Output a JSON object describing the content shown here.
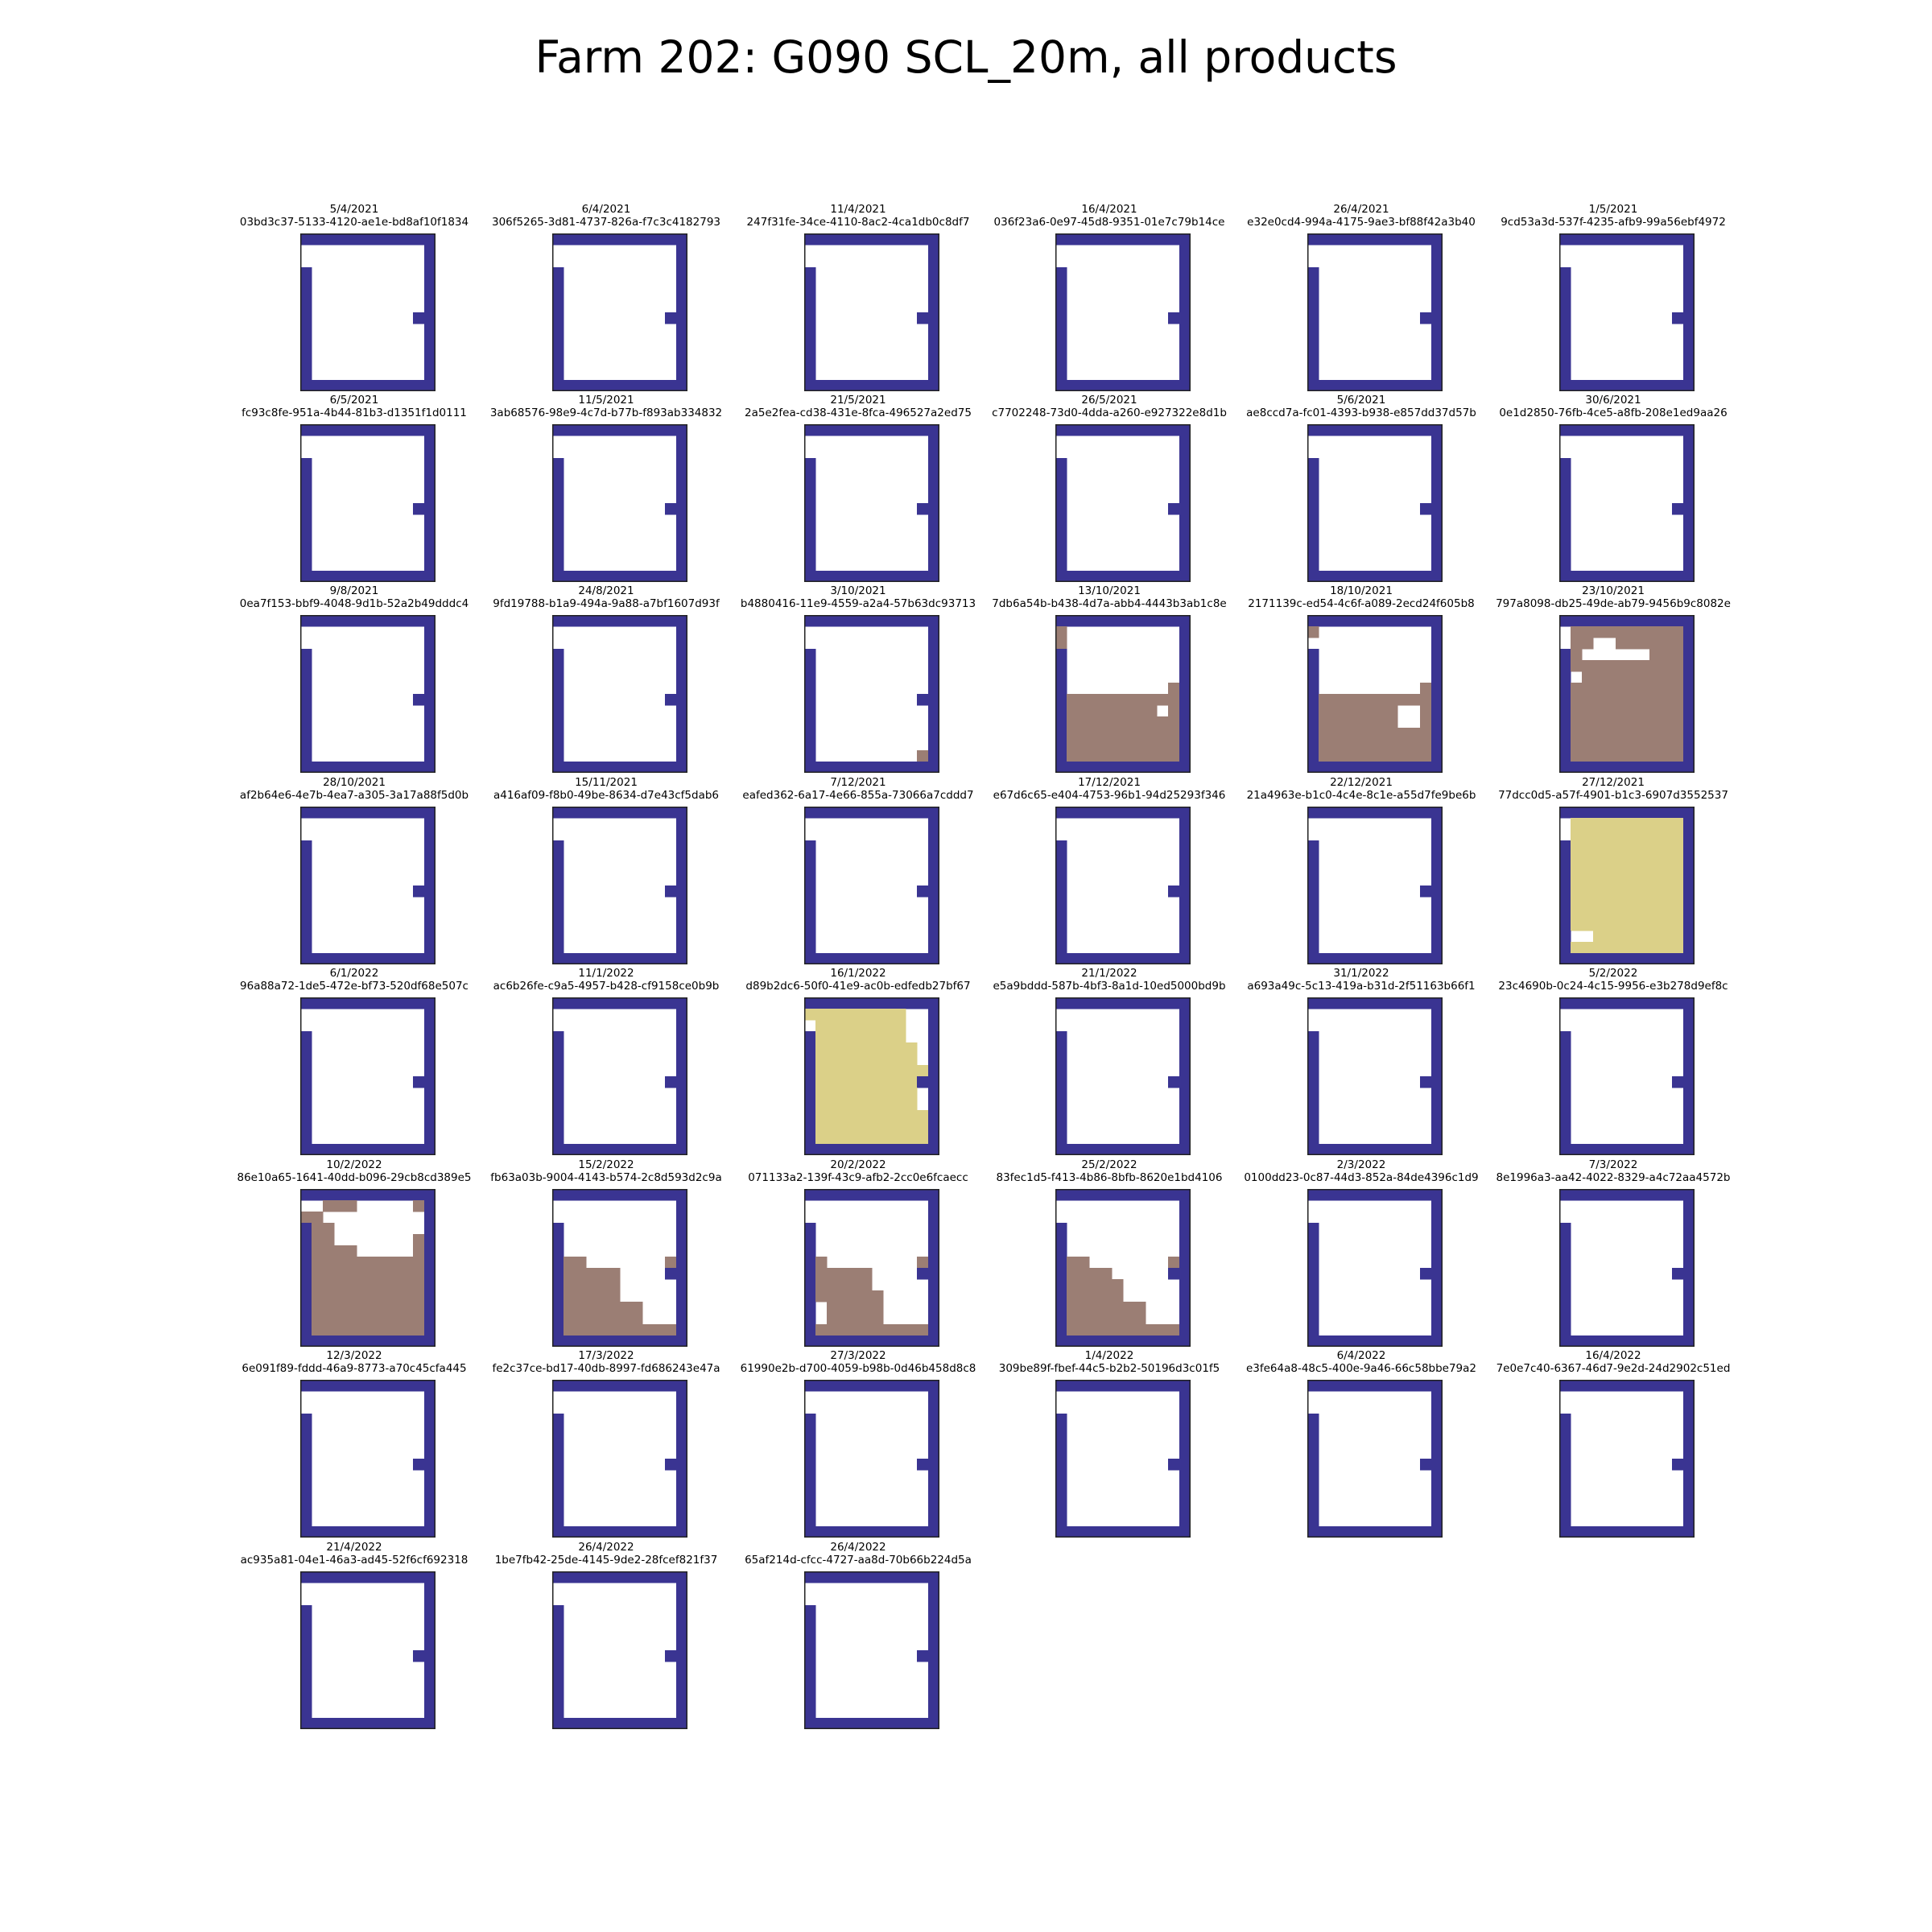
{
  "title": "Farm 202: G090 SCL_20m, all products",
  "chart_data": {
    "type": "heatmap",
    "title": "Farm 202: G090 SCL_20m, all products",
    "grid_rows": 14,
    "grid_cols": 12,
    "colors": {
      "nodata": "#ffffff",
      "field_border": "#3a3492",
      "class_brown": "#9b7e74",
      "class_yellow": "#dbd088",
      "outline": "#222222"
    },
    "panels": [
      {
        "date": "5/4/2021",
        "id": "03bd3c37-5133-4120-ae1e-bd8af10f1834"
      },
      {
        "date": "6/4/2021",
        "id": "306f5265-3d81-4737-826a-f7c3c4182793"
      },
      {
        "date": "11/4/2021",
        "id": "247f31fe-34ce-4110-8ac2-4ca1db0c8df7"
      },
      {
        "date": "16/4/2021",
        "id": "036f23a6-0e97-45d8-9351-01e7c79b14ce"
      },
      {
        "date": "26/4/2021",
        "id": "e32e0cd4-994a-4175-9ae3-bf88f42a3b40"
      },
      {
        "date": "1/5/2021",
        "id": "9cd53a3d-537f-4235-afb9-99a56ebf4972"
      },
      {
        "date": "6/5/2021",
        "id": "fc93c8fe-951a-4b44-81b3-d1351f1d0111"
      },
      {
        "date": "11/5/2021",
        "id": "3ab68576-98e9-4c7d-b77b-f893ab334832"
      },
      {
        "date": "21/5/2021",
        "id": "2a5e2fea-cd38-431e-8fca-496527a2ed75"
      },
      {
        "date": "26/5/2021",
        "id": "c7702248-73d0-4dda-a260-e927322e8d1b"
      },
      {
        "date": "5/6/2021",
        "id": "ae8ccd7a-fc01-4393-b938-e857dd37d57b"
      },
      {
        "date": "30/6/2021",
        "id": "0e1d2850-76fb-4ce5-a8fb-208e1ed9aa26"
      },
      {
        "date": "9/8/2021",
        "id": "0ea7f153-bbf9-4048-9d1b-52a2b49dddc4"
      },
      {
        "date": "24/8/2021",
        "id": "9fd19788-b1a9-494a-9a88-a7bf1607d93f"
      },
      {
        "date": "3/10/2021",
        "id": "b4880416-11e9-4559-a2a4-57b63dc93713",
        "cells": [
          [
            "brown",
            12,
            10
          ]
        ]
      },
      {
        "date": "13/10/2021",
        "id": "7db6a54b-b438-4d7a-abb4-4443b3ab1c8e",
        "cells": [
          [
            "brown",
            1,
            0
          ],
          [
            "brown",
            2,
            0
          ],
          [
            "brown",
            6,
            10
          ],
          [
            "brown",
            7,
            1,
            10
          ],
          [
            "brown",
            8,
            1,
            8
          ],
          [
            "brown",
            8,
            10
          ],
          [
            "brown",
            9,
            1,
            10
          ],
          [
            "brown",
            10,
            1,
            10
          ],
          [
            "brown",
            11,
            1,
            10
          ],
          [
            "brown",
            12,
            1,
            10
          ]
        ]
      },
      {
        "date": "18/10/2021",
        "id": "2171139c-ed54-4c6f-a089-2ecd24f605b8",
        "cells": [
          [
            "brown",
            1,
            0
          ],
          [
            "brown",
            6,
            10
          ],
          [
            "brown",
            7,
            1,
            10
          ],
          [
            "brown",
            8,
            1,
            7
          ],
          [
            "brown",
            8,
            10
          ],
          [
            "brown",
            9,
            1,
            7
          ],
          [
            "brown",
            9,
            10
          ],
          [
            "brown",
            10,
            1,
            10
          ],
          [
            "brown",
            11,
            1,
            10
          ],
          [
            "brown",
            12,
            1,
            10
          ]
        ]
      },
      {
        "date": "23/10/2021",
        "id": "797a8098-db25-49de-ab79-9456b9c8082e",
        "cells": [
          [
            "brown",
            1,
            1,
            10
          ],
          [
            "brown",
            2,
            1,
            2
          ],
          [
            "brown",
            2,
            5,
            10
          ],
          [
            "brown",
            3,
            1
          ],
          [
            "brown",
            3,
            8,
            10
          ],
          [
            "brown",
            4,
            1,
            10
          ],
          [
            "brown",
            5,
            2,
            10
          ],
          [
            "brown",
            6,
            1,
            10
          ],
          [
            "brown",
            7,
            1,
            10
          ],
          [
            "brown",
            8,
            1,
            10
          ],
          [
            "brown",
            9,
            1,
            10
          ],
          [
            "brown",
            10,
            1,
            10
          ],
          [
            "brown",
            11,
            1,
            10
          ],
          [
            "brown",
            12,
            1,
            10
          ]
        ]
      },
      {
        "date": "28/10/2021",
        "id": "af2b64e6-4e7b-4ea7-a305-3a17a88f5d0b"
      },
      {
        "date": "15/11/2021",
        "id": "a416af09-f8b0-49be-8634-d7e43cf5dab6"
      },
      {
        "date": "7/12/2021",
        "id": "eafed362-6a17-4e66-855a-73066a7cddd7"
      },
      {
        "date": "17/12/2021",
        "id": "e67d6c65-e404-4753-96b1-94d25293f346"
      },
      {
        "date": "22/12/2021",
        "id": "21a4963e-b1c0-4c4e-8c1e-a55d7fe9be6b"
      },
      {
        "date": "27/12/2021",
        "id": "77dcc0d5-a57f-4901-b1c3-6907d3552537",
        "cells": [
          [
            "yellow",
            1,
            1,
            10
          ],
          [
            "yellow",
            2,
            1,
            10
          ],
          [
            "yellow",
            3,
            1,
            10
          ],
          [
            "yellow",
            4,
            1,
            10
          ],
          [
            "yellow",
            5,
            1,
            10
          ],
          [
            "yellow",
            6,
            1,
            10
          ],
          [
            "yellow",
            7,
            1,
            10
          ],
          [
            "yellow",
            8,
            1,
            10
          ],
          [
            "yellow",
            9,
            1,
            10
          ],
          [
            "yellow",
            10,
            1,
            10
          ],
          [
            "yellow",
            11,
            3,
            10
          ],
          [
            "yellow",
            12,
            1,
            10
          ]
        ]
      },
      {
        "date": "6/1/2022",
        "id": "96a88a72-1de5-472e-bf73-520df68e507c"
      },
      {
        "date": "11/1/2022",
        "id": "ac6b26fe-c9a5-4957-b428-cf9158ce0b9b"
      },
      {
        "date": "16/1/2022",
        "id": "d89b2dc6-50f0-41e9-ac0b-edfedb27bf67",
        "cells": [
          [
            "yellow",
            1,
            0,
            8
          ],
          [
            "yellow",
            2,
            1,
            8
          ],
          [
            "yellow",
            3,
            1,
            8
          ],
          [
            "yellow",
            4,
            1,
            9
          ],
          [
            "yellow",
            5,
            1,
            9
          ],
          [
            "yellow",
            6,
            1,
            10
          ],
          [
            "yellow",
            7,
            1,
            9
          ],
          [
            "yellow",
            8,
            1,
            9
          ],
          [
            "yellow",
            9,
            1,
            9
          ],
          [
            "yellow",
            10,
            1,
            10
          ],
          [
            "yellow",
            11,
            1,
            10
          ],
          [
            "yellow",
            12,
            1,
            10
          ]
        ]
      },
      {
        "date": "21/1/2022",
        "id": "e5a9bddd-587b-4bf3-8a1d-10ed5000bd9b"
      },
      {
        "date": "31/1/2022",
        "id": "a693a49c-5c13-419a-b31d-2f51163b66f1"
      },
      {
        "date": "5/2/2022",
        "id": "23c4690b-0c24-4c15-9956-e3b278d9ef8c"
      },
      {
        "date": "10/2/2022",
        "id": "86e10a65-1641-40dd-b096-29cb8cd389e5",
        "cells": [
          [
            "brown",
            1,
            2,
            4
          ],
          [
            "brown",
            1,
            10
          ],
          [
            "brown",
            2,
            0,
            1
          ],
          [
            "brown",
            3,
            1,
            2
          ],
          [
            "brown",
            4,
            1,
            2
          ],
          [
            "brown",
            4,
            10
          ],
          [
            "brown",
            5,
            1,
            4
          ],
          [
            "brown",
            5,
            10
          ],
          [
            "brown",
            6,
            1,
            10
          ],
          [
            "brown",
            7,
            1,
            10
          ],
          [
            "brown",
            8,
            1,
            10
          ],
          [
            "brown",
            9,
            1,
            10
          ],
          [
            "brown",
            10,
            1,
            10
          ],
          [
            "brown",
            11,
            1,
            10
          ],
          [
            "brown",
            12,
            1,
            10
          ]
        ]
      },
      {
        "date": "15/2/2022",
        "id": "fb63a03b-9004-4143-b574-2c8d593d2c9a",
        "cells": [
          [
            "brown",
            6,
            1,
            2
          ],
          [
            "brown",
            6,
            10
          ],
          [
            "brown",
            7,
            1,
            5
          ],
          [
            "brown",
            8,
            1,
            5
          ],
          [
            "brown",
            9,
            1,
            5
          ],
          [
            "brown",
            10,
            1,
            5
          ],
          [
            "brown",
            10,
            6,
            7
          ],
          [
            "brown",
            11,
            1,
            7
          ],
          [
            "brown",
            12,
            1,
            10
          ]
        ]
      },
      {
        "date": "20/2/2022",
        "id": "071133a2-139f-43c9-afb2-2cc0e6fcaecc",
        "cells": [
          [
            "brown",
            6,
            1
          ],
          [
            "brown",
            6,
            10
          ],
          [
            "brown",
            7,
            1,
            5
          ],
          [
            "brown",
            8,
            1,
            5
          ],
          [
            "brown",
            9,
            1,
            6
          ],
          [
            "brown",
            10,
            2,
            6
          ],
          [
            "brown",
            11,
            2,
            6
          ],
          [
            "brown",
            12,
            1,
            10
          ]
        ]
      },
      {
        "date": "25/2/2022",
        "id": "83fec1d5-f413-4b86-8bfb-8620e1bd4106",
        "cells": [
          [
            "brown",
            6,
            1,
            2
          ],
          [
            "brown",
            6,
            10
          ],
          [
            "brown",
            7,
            1,
            4
          ],
          [
            "brown",
            8,
            1,
            5
          ],
          [
            "brown",
            9,
            1,
            5
          ],
          [
            "brown",
            10,
            1,
            5
          ],
          [
            "brown",
            10,
            6,
            7
          ],
          [
            "brown",
            11,
            1,
            7
          ],
          [
            "brown",
            12,
            1,
            10
          ]
        ]
      },
      {
        "date": "2/3/2022",
        "id": "0100dd23-0c87-44d3-852a-84de4396c1d9"
      },
      {
        "date": "7/3/2022",
        "id": "8e1996a3-aa42-4022-8329-a4c72aa4572b"
      },
      {
        "date": "12/3/2022",
        "id": "6e091f89-fddd-46a9-8773-a70c45cfa445"
      },
      {
        "date": "17/3/2022",
        "id": "fe2c37ce-bd17-40db-8997-fd686243e47a"
      },
      {
        "date": "27/3/2022",
        "id": "61990e2b-d700-4059-b98b-0d46b458d8c8"
      },
      {
        "date": "1/4/2022",
        "id": "309be89f-fbef-44c5-b2b2-50196d3c01f5"
      },
      {
        "date": "6/4/2022",
        "id": "e3fe64a8-48c5-400e-9a46-66c58bbe79a2"
      },
      {
        "date": "16/4/2022",
        "id": "7e0e7c40-6367-46d7-9e2d-24d2902c51ed"
      },
      {
        "date": "21/4/2022",
        "id": "ac935a81-04e1-46a3-ad45-52f6cf692318"
      },
      {
        "date": "26/4/2022",
        "id": "1be7fb42-25de-4145-9de2-28fcef821f37"
      },
      {
        "date": "26/4/2022",
        "id": "65af214d-cfcc-4727-aa8d-70b66b224d5a"
      }
    ]
  }
}
